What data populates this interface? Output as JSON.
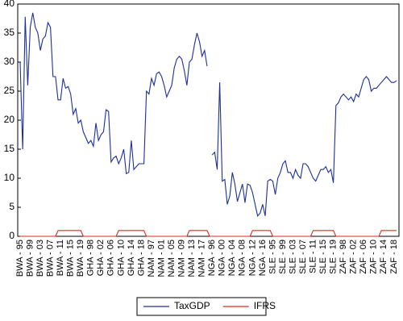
{
  "chart_data": {
    "type": "line",
    "categories": [
      "BWA - 95",
      null,
      null,
      null,
      "BWA - 99",
      null,
      null,
      null,
      "BWA - 03",
      null,
      null,
      null,
      "BWA - 07",
      null,
      null,
      null,
      "BWA - 11",
      null,
      null,
      null,
      "BWA - 15",
      null,
      null,
      null,
      "BWA - 19",
      null,
      null,
      null,
      "GHA - 98",
      null,
      null,
      null,
      "GHA - 02",
      null,
      null,
      null,
      "GHA - 06",
      null,
      null,
      null,
      "GHA - 10",
      null,
      null,
      null,
      "GHA - 14",
      null,
      null,
      null,
      "GHA - 18",
      null,
      null,
      null,
      "NAM - 97",
      null,
      null,
      null,
      "NAM - 01",
      null,
      null,
      null,
      "NAM - 05",
      null,
      null,
      null,
      "NAM - 09",
      null,
      null,
      null,
      "NAM - 13",
      null,
      null,
      null,
      "NAM - 17",
      null,
      null,
      null,
      "NGA - 96",
      null,
      null,
      null,
      "NGA - 00",
      null,
      null,
      null,
      "NGA - 04",
      null,
      null,
      null,
      "NGA - 08",
      null,
      null,
      null,
      "NGA - 12",
      null,
      null,
      null,
      "NGA - 16",
      null,
      null,
      null,
      "SLE - 95",
      null,
      null,
      null,
      "SLE - 99",
      null,
      null,
      null,
      "SLE - 03",
      null,
      null,
      null,
      "SLE - 07",
      null,
      null,
      null,
      "SLE - 11",
      null,
      null,
      null,
      "SLE - 15",
      null,
      null,
      null,
      "SLE - 19",
      null,
      null,
      null,
      "ZAF - 98",
      null,
      null,
      null,
      "ZAF - 02",
      null,
      null,
      null,
      "ZAF - 06",
      null,
      null,
      null,
      "ZAF - 10",
      null,
      null,
      null,
      "ZAF - 14",
      null,
      null,
      null,
      "ZAF - 18",
      null
    ],
    "series": [
      {
        "name": "TaxGDP",
        "color": "#1c2f9e",
        "values": [
          30,
          15,
          37.8,
          26,
          36,
          38.5,
          36,
          35,
          32,
          34,
          34.5,
          36.8,
          36,
          27.5,
          27.5,
          23.5,
          23.5,
          27.2,
          25.5,
          25.8,
          24.5,
          21,
          22,
          19.5,
          20,
          18,
          17,
          16,
          16.5,
          15.5,
          19.5,
          16.5,
          17.5,
          18,
          21.8,
          21.5,
          12.8,
          13.5,
          13.8,
          12.5,
          13.5,
          15,
          10.8,
          11,
          16.5,
          11.5,
          12,
          12.5,
          12.5,
          12.5,
          25,
          24.5,
          27.2,
          26,
          28,
          28.3,
          27.5,
          26,
          24,
          25,
          26,
          29,
          30.5,
          31,
          30.5,
          28.5,
          26,
          30,
          30.5,
          33,
          35,
          33.5,
          31,
          32,
          29.3,
          null,
          14,
          14.5,
          11.5,
          26.5,
          9.5,
          9.8,
          5.5,
          7,
          11,
          9,
          6,
          7.5,
          9,
          5.8,
          9,
          8.8,
          7.5,
          5.5,
          3.5,
          4,
          5.5,
          3.5,
          9.5,
          9.8,
          9.5,
          7.2,
          10,
          11,
          12.5,
          13,
          11,
          11,
          10,
          11.5,
          10.5,
          10,
          12.5,
          12.5,
          12,
          11,
          10,
          9.5,
          10.5,
          11.5,
          11.5,
          12,
          11,
          11.5,
          9.2,
          22.5,
          23,
          24,
          24.5,
          24,
          23.5,
          24,
          23.2,
          24.5,
          24,
          25.5,
          27,
          27.5,
          27,
          25,
          25.5,
          25.5,
          26,
          26.5,
          27,
          27.5,
          27,
          26.5,
          26.5,
          26.8
        ]
      },
      {
        "name": "IFRS",
        "color": "#e3261c",
        "values": [
          0,
          0,
          0,
          0,
          0,
          0,
          0,
          0,
          0,
          0,
          0,
          0,
          0,
          0,
          0,
          1,
          1,
          1,
          1,
          1,
          1,
          1,
          1,
          1,
          1,
          0,
          0,
          0,
          0,
          0,
          0,
          0,
          0,
          0,
          0,
          0,
          0,
          0,
          0,
          1,
          1,
          1,
          1,
          1,
          1,
          1,
          1,
          1,
          1,
          1,
          0,
          0,
          0,
          0,
          0,
          0,
          0,
          0,
          0,
          0,
          0,
          0,
          0,
          0,
          0,
          0,
          0,
          1,
          1,
          1,
          1,
          1,
          1,
          1,
          1,
          0,
          0,
          0,
          0,
          0,
          0,
          0,
          0,
          0,
          0,
          0,
          0,
          0,
          0,
          0,
          0,
          0,
          1,
          1,
          1,
          1,
          1,
          1,
          1,
          1,
          0,
          0,
          0,
          0,
          0,
          0,
          0,
          0,
          0,
          0,
          0,
          0,
          0,
          0,
          0,
          0,
          1,
          1,
          1,
          1,
          1,
          1,
          1,
          1,
          1,
          0,
          0,
          0,
          0,
          0,
          0,
          0,
          0,
          0,
          0,
          0,
          0,
          0,
          0,
          0,
          0,
          0,
          0,
          1,
          1,
          1,
          1,
          1,
          1,
          1
        ]
      }
    ],
    "ylim": [
      0,
      40
    ],
    "yticks": [
      0,
      5,
      10,
      15,
      20,
      25,
      30,
      35,
      40
    ],
    "grid": false,
    "legend": "bottom"
  }
}
